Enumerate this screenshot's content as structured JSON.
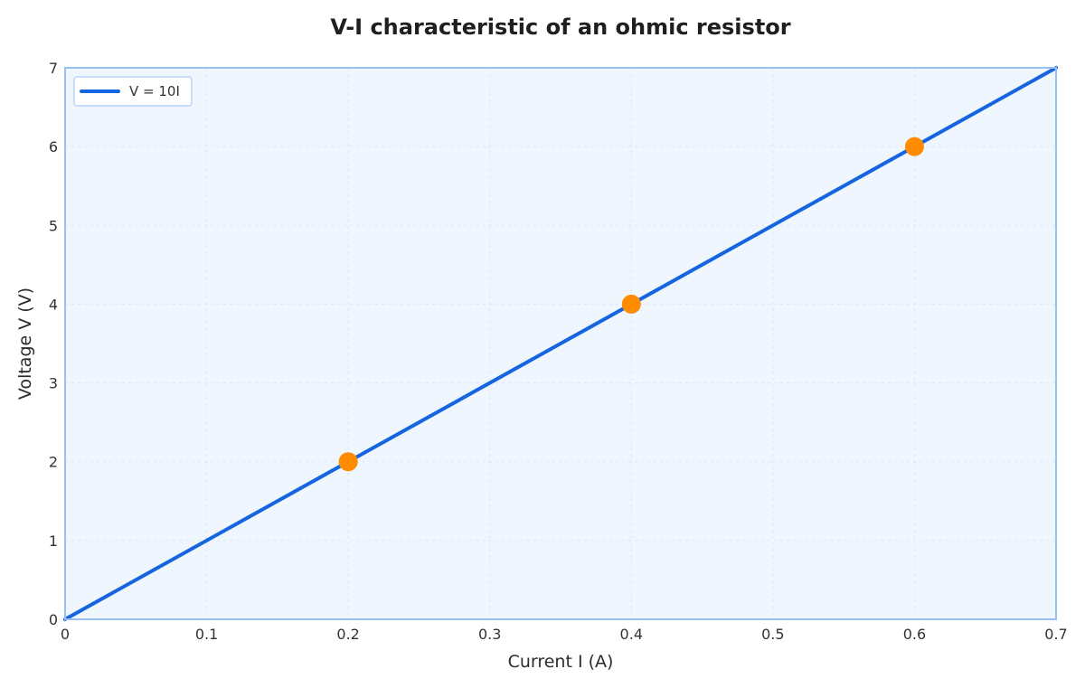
{
  "chart_data": {
    "type": "line",
    "title": "V-I characteristic of an ohmic resistor",
    "xlabel": "Current I (A)",
    "ylabel": "Voltage V (V)",
    "xlim": [
      0,
      0.7
    ],
    "ylim": [
      0,
      7
    ],
    "x_ticks": [
      "0",
      "0.1",
      "0.2",
      "0.3",
      "0.4",
      "0.5",
      "0.6",
      "0.7"
    ],
    "y_ticks": [
      "0",
      "1",
      "2",
      "3",
      "4",
      "5",
      "6",
      "7"
    ],
    "grid": true,
    "legend_position": "top-left",
    "series": [
      {
        "name": "V = 10I",
        "kind": "line",
        "color": "#1565e0",
        "x": [
          0,
          0.7
        ],
        "y": [
          0,
          7
        ]
      },
      {
        "kind": "scatter",
        "color": "#ff8c00",
        "x": [
          0.2,
          0.4,
          0.6
        ],
        "y": [
          2,
          4,
          6
        ]
      }
    ],
    "colors": {
      "plot_background": "#f0f6fe",
      "frame": "#99bff5",
      "grid": "#dbe6f5",
      "legend_border": "#b9d3f7"
    }
  }
}
